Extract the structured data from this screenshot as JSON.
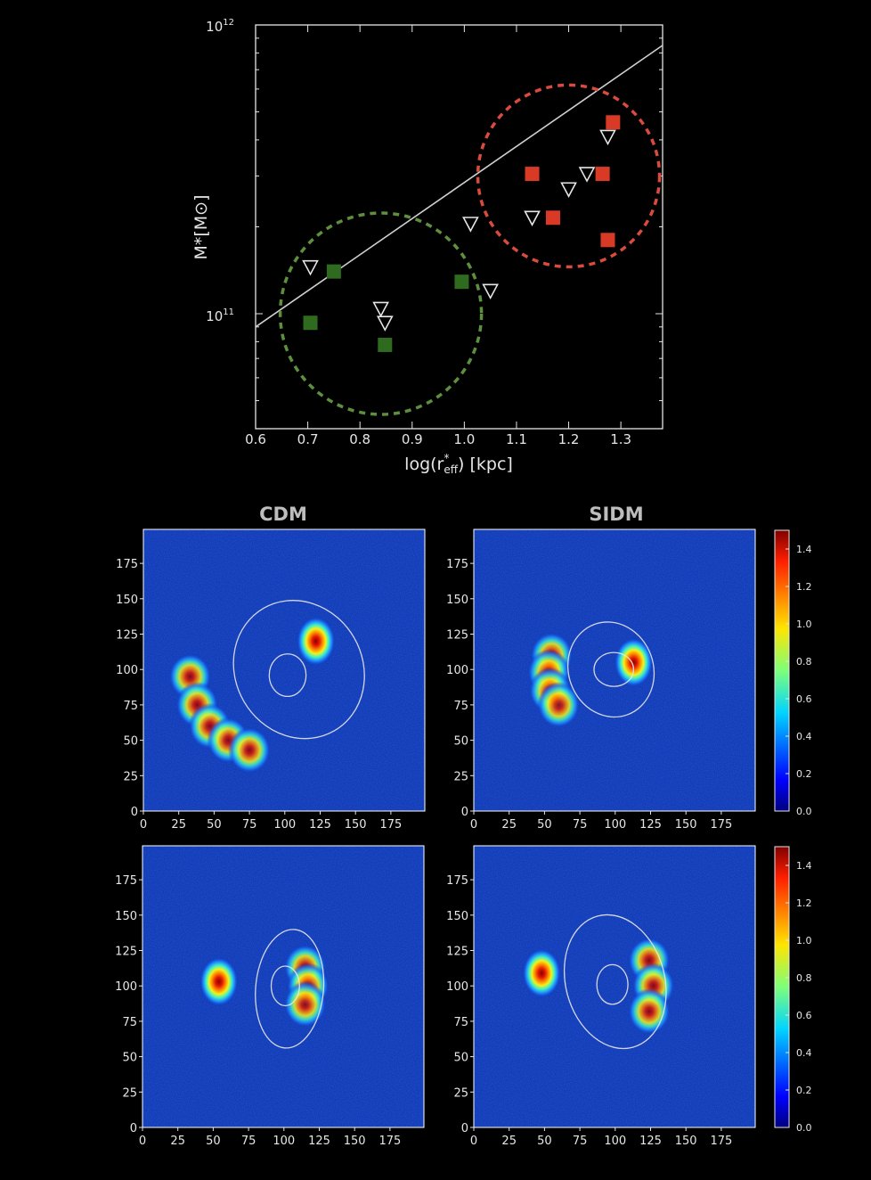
{
  "scatter": {
    "ylabel": "M*[M⊙]",
    "xlabel_prefix": "log(r",
    "xlabel_sup": "*",
    "xlabel_sub": "eff",
    "xlabel_suffix": ") [kpc]",
    "y_tick_labels": [
      {
        "base": "10",
        "exp": "12",
        "value": 1000000000000.0
      },
      {
        "base": "10",
        "exp": "11",
        "value": 100000000000.0
      }
    ]
  },
  "titles": {
    "cdm": "CDM",
    "sidm": "SIDM"
  },
  "colors": {
    "green_marker": "#2e6b1f",
    "red_marker": "#d83a26",
    "green_circle": "#5e8f3e",
    "red_circle": "#d94a3f",
    "fit_line": "#cfcfcf",
    "background": "#000000",
    "map_background": "#0a2fb0"
  },
  "chart_data": [
    {
      "type": "scatter",
      "xlabel": "log(r*eff) [kpc]",
      "ylabel": "M*[M⊙]",
      "xlim": [
        0.6,
        1.38
      ],
      "ylim": [
        50000000000.0,
        1000000000000.0
      ],
      "yscale": "log",
      "x_ticks": [
        0.6,
        0.7,
        0.8,
        0.9,
        1.0,
        1.1,
        1.2,
        1.3
      ],
      "x_tick_labels": [
        "0.6",
        "0.7",
        "0.8",
        "0.9",
        "1.0",
        "1.1",
        "1.2",
        "1.3"
      ],
      "series": [
        {
          "marker": "square",
          "color": "green",
          "x": [
            0.705,
            0.75,
            0.848,
            0.995
          ],
          "y": [
            93000000000.0,
            140000000000.0,
            78000000000.0,
            129000000000.0
          ]
        },
        {
          "marker": "square",
          "color": "red",
          "x": [
            1.13,
            1.17,
            1.265,
            1.275,
            1.285
          ],
          "y": [
            305000000000.0,
            215000000000.0,
            305000000000.0,
            180000000000.0,
            460000000000.0
          ]
        },
        {
          "marker": "triangle-down",
          "color": "white-outline",
          "x": [
            0.705,
            0.84,
            0.848,
            1.012,
            1.05,
            1.13,
            1.2,
            1.235,
            1.275
          ],
          "y": [
            145000000000.0,
            104000000000.0,
            93000000000.0,
            205000000000.0,
            120000000000.0,
            215000000000.0,
            270000000000.0,
            305000000000.0,
            410000000000.0
          ]
        }
      ],
      "fit_line": {
        "x": [
          0.6,
          1.38
        ],
        "y": [
          90000000000.0,
          850000000000.0
        ]
      },
      "circles": [
        {
          "color": "green",
          "center_x": 0.84,
          "center_y": 100000000000.0
        },
        {
          "color": "red",
          "center_x": 1.2,
          "center_y": 300000000000.0
        }
      ]
    },
    {
      "type": "heatmap",
      "row": 1,
      "column": "CDM",
      "xlim": [
        0,
        199
      ],
      "ylim": [
        0,
        199
      ],
      "ticks": [
        0,
        25,
        50,
        75,
        100,
        125,
        150,
        175
      ],
      "blobs": [
        {
          "kind": "arc",
          "points": [
            [
              33,
              95
            ],
            [
              38,
              75
            ],
            [
              47,
              60
            ],
            [
              60,
              50
            ],
            [
              75,
              43
            ]
          ],
          "peak": 1.5
        },
        {
          "kind": "spot",
          "x": 122,
          "y": 120,
          "peak": 1.45
        }
      ],
      "contours": [
        {
          "cx": 110,
          "cy": 100,
          "rx": 45,
          "ry": 50,
          "rotation": 30
        },
        {
          "cx": 102,
          "cy": 96,
          "rx": 13,
          "ry": 15,
          "rotation": 0
        }
      ]
    },
    {
      "type": "heatmap",
      "row": 1,
      "column": "SIDM",
      "xlim": [
        0,
        199
      ],
      "ylim": [
        0,
        199
      ],
      "ticks": [
        0,
        25,
        50,
        75,
        100,
        125,
        150,
        175
      ],
      "blobs": [
        {
          "kind": "arc",
          "points": [
            [
              55,
              110
            ],
            [
              53,
              98
            ],
            [
              54,
              85
            ],
            [
              60,
              75
            ]
          ],
          "peak": 1.5
        },
        {
          "kind": "spot",
          "x": 113,
          "y": 105,
          "peak": 1.5
        }
      ],
      "contours": [
        {
          "cx": 97,
          "cy": 100,
          "rx": 30,
          "ry": 34,
          "rotation": 20
        },
        {
          "cx": 99,
          "cy": 100,
          "rx": 14,
          "ry": 12,
          "rotation": 0
        }
      ]
    },
    {
      "type": "heatmap",
      "row": 2,
      "column": "CDM",
      "xlim": [
        0,
        199
      ],
      "ylim": [
        0,
        199
      ],
      "ticks": [
        0,
        25,
        50,
        75,
        100,
        125,
        150,
        175
      ],
      "blobs": [
        {
          "kind": "spot",
          "x": 54,
          "y": 103,
          "peak": 1.5
        },
        {
          "kind": "arc",
          "points": [
            [
              115,
              113
            ],
            [
              117,
              100
            ],
            [
              115,
              87
            ]
          ],
          "peak": 1.55
        }
      ],
      "contours": [
        {
          "cx": 104,
          "cy": 98,
          "rx": 24,
          "ry": 42,
          "rotation": -5
        },
        {
          "cx": 101,
          "cy": 100,
          "rx": 10,
          "ry": 14,
          "rotation": 0
        }
      ]
    },
    {
      "type": "heatmap",
      "row": 2,
      "column": "SIDM",
      "xlim": [
        0,
        199
      ],
      "ylim": [
        0,
        199
      ],
      "ticks": [
        0,
        25,
        50,
        75,
        100,
        125,
        150,
        175
      ],
      "blobs": [
        {
          "kind": "spot",
          "x": 48,
          "y": 109,
          "peak": 1.45
        },
        {
          "kind": "arc",
          "points": [
            [
              124,
              118
            ],
            [
              127,
              100
            ],
            [
              124,
              82
            ]
          ],
          "peak": 1.55
        }
      ],
      "contours": [
        {
          "cx": 100,
          "cy": 103,
          "rx": 35,
          "ry": 48,
          "rotation": 15
        },
        {
          "cx": 98,
          "cy": 101,
          "rx": 11,
          "ry": 14,
          "rotation": 0
        }
      ]
    },
    {
      "type": "colorbar",
      "colormap": "jet",
      "range": [
        0.0,
        1.5
      ],
      "ticks": [
        0.0,
        0.2,
        0.4,
        0.6,
        0.8,
        1.0,
        1.2,
        1.4
      ],
      "tick_labels": [
        "0.0",
        "0.2",
        "0.4",
        "0.6",
        "0.8",
        "1.0",
        "1.2",
        "1.4"
      ]
    }
  ]
}
